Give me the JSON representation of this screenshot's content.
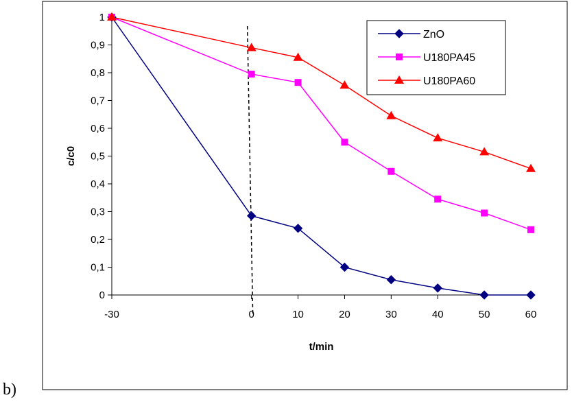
{
  "panel_label": "b)",
  "chart_data": {
    "type": "line",
    "title": "",
    "xlabel": "t/min",
    "ylabel": "c/c0",
    "x": [
      -30,
      0,
      10,
      20,
      30,
      40,
      50,
      60
    ],
    "x_tick_labels": [
      "-30",
      "0",
      "10",
      "20",
      "30",
      "40",
      "50",
      "60"
    ],
    "ylim": [
      0,
      1
    ],
    "y_tick_labels": [
      "0",
      "0,1",
      "0,2",
      "0,3",
      "0,4",
      "0,5",
      "0,6",
      "0,7",
      "0,8",
      "0,9",
      "1"
    ],
    "grid": false,
    "legend_position": "top-right",
    "reference_line": {
      "x": 0,
      "style": "dashed",
      "color": "#000000"
    },
    "series": [
      {
        "name": "ZnO",
        "marker": "diamond",
        "color": "#000080",
        "values": [
          1.0,
          0.285,
          0.24,
          0.1,
          0.055,
          0.025,
          0.0,
          0.0
        ]
      },
      {
        "name": "U180PA45",
        "marker": "square",
        "color": "#ff00ff",
        "values": [
          1.0,
          0.795,
          0.765,
          0.55,
          0.445,
          0.345,
          0.295,
          0.235
        ]
      },
      {
        "name": "U180PA60",
        "marker": "triangle",
        "color": "#ff0000",
        "values": [
          1.0,
          0.89,
          0.855,
          0.755,
          0.645,
          0.565,
          0.515,
          0.455
        ]
      }
    ]
  }
}
